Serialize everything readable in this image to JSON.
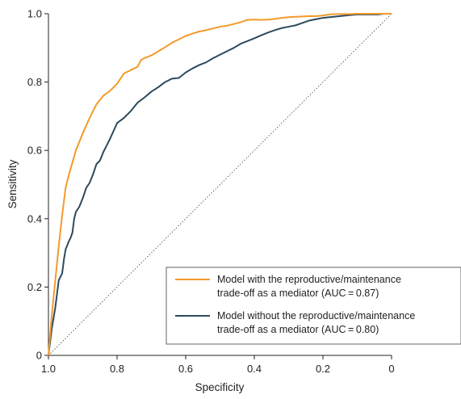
{
  "chart_data": {
    "type": "line",
    "title": "",
    "xlabel": "Specificity",
    "ylabel": "Sensitivity",
    "xlim": [
      1.0,
      0
    ],
    "ylim": [
      0,
      1.0
    ],
    "x_reversed": true,
    "grid": false,
    "legend_position": "bottom-right",
    "x_ticks": [
      {
        "value": 1.0,
        "label": "1.0"
      },
      {
        "value": 0.8,
        "label": "0.8"
      },
      {
        "value": 0.6,
        "label": "0.6"
      },
      {
        "value": 0.4,
        "label": "0.4"
      },
      {
        "value": 0.2,
        "label": "0.2"
      },
      {
        "value": 0,
        "label": "0"
      }
    ],
    "y_ticks": [
      {
        "value": 0,
        "label": "0"
      },
      {
        "value": 0.2,
        "label": "0.2"
      },
      {
        "value": 0.4,
        "label": "0.4"
      },
      {
        "value": 0.6,
        "label": "0.6"
      },
      {
        "value": 0.8,
        "label": "0.8"
      },
      {
        "value": 1.0,
        "label": "1.0"
      }
    ],
    "series": [
      {
        "name": "Model with the reproductive/maintenance trade-off as a mediator (AUC = 0.87)",
        "legend_lines": [
          "Model with the reproductive/maintenance",
          "trade-off as a mediator (AUC = 0.87)"
        ],
        "color": "#f39a2b",
        "specificity": [
          1.0,
          0.99,
          0.98,
          0.97,
          0.96,
          0.95,
          0.94,
          0.92,
          0.9,
          0.88,
          0.86,
          0.84,
          0.82,
          0.8,
          0.78,
          0.77,
          0.76,
          0.74,
          0.73,
          0.72,
          0.7,
          0.68,
          0.66,
          0.64,
          0.62,
          0.6,
          0.58,
          0.56,
          0.54,
          0.52,
          0.5,
          0.48,
          0.46,
          0.44,
          0.42,
          0.4,
          0.38,
          0.36,
          0.34,
          0.32,
          0.3,
          0.28,
          0.26,
          0.24,
          0.22,
          0.2,
          0.18,
          0.16,
          0.14,
          0.12,
          0.1,
          0.08,
          0.06,
          0.04,
          0.02,
          0
        ],
        "sensitivity": [
          0,
          0.12,
          0.22,
          0.32,
          0.41,
          0.49,
          0.53,
          0.6,
          0.65,
          0.695,
          0.735,
          0.76,
          0.775,
          0.795,
          0.825,
          0.83,
          0.835,
          0.845,
          0.865,
          0.87,
          0.878,
          0.89,
          0.902,
          0.915,
          0.925,
          0.935,
          0.942,
          0.948,
          0.952,
          0.957,
          0.962,
          0.965,
          0.97,
          0.975,
          0.982,
          0.983,
          0.982,
          0.983,
          0.985,
          0.988,
          0.99,
          0.991,
          0.992,
          0.993,
          0.993,
          0.995,
          0.998,
          0.999,
          0.999,
          0.999,
          1.0,
          1.0,
          1.0,
          1.0,
          1.0,
          1.0
        ]
      },
      {
        "name": "Model without the reproductive/maintenance trade-off as a mediator (AUC = 0.80)",
        "legend_lines": [
          "Model without the reproductive/maintenance",
          "trade-off as a mediator (AUC = 0.80)"
        ],
        "color": "#2c4a5c",
        "specificity": [
          1.0,
          0.99,
          0.98,
          0.97,
          0.96,
          0.955,
          0.95,
          0.94,
          0.935,
          0.93,
          0.925,
          0.92,
          0.91,
          0.9,
          0.89,
          0.88,
          0.87,
          0.86,
          0.85,
          0.84,
          0.82,
          0.8,
          0.78,
          0.76,
          0.74,
          0.72,
          0.7,
          0.68,
          0.66,
          0.64,
          0.62,
          0.6,
          0.58,
          0.56,
          0.54,
          0.52,
          0.5,
          0.48,
          0.46,
          0.44,
          0.42,
          0.4,
          0.38,
          0.36,
          0.34,
          0.32,
          0.3,
          0.28,
          0.26,
          0.24,
          0.22,
          0.2,
          0.18,
          0.16,
          0.14,
          0.12,
          0.1,
          0.08,
          0.06,
          0.04,
          0.02,
          0
        ],
        "sensitivity": [
          0,
          0.08,
          0.14,
          0.22,
          0.24,
          0.28,
          0.31,
          0.335,
          0.345,
          0.36,
          0.4,
          0.42,
          0.435,
          0.46,
          0.49,
          0.505,
          0.53,
          0.56,
          0.57,
          0.595,
          0.635,
          0.68,
          0.695,
          0.715,
          0.74,
          0.755,
          0.772,
          0.785,
          0.8,
          0.81,
          0.812,
          0.828,
          0.84,
          0.85,
          0.858,
          0.87,
          0.88,
          0.89,
          0.9,
          0.912,
          0.92,
          0.928,
          0.937,
          0.945,
          0.952,
          0.958,
          0.962,
          0.966,
          0.973,
          0.98,
          0.984,
          0.988,
          0.99,
          0.992,
          0.994,
          0.996,
          0.998,
          0.998,
          0.998,
          0.998,
          1.0,
          1.0
        ]
      }
    ],
    "reference_line": {
      "type": "dotted",
      "from": [
        1.0,
        0
      ],
      "to": [
        0,
        1.0
      ],
      "color": "#444444"
    }
  }
}
